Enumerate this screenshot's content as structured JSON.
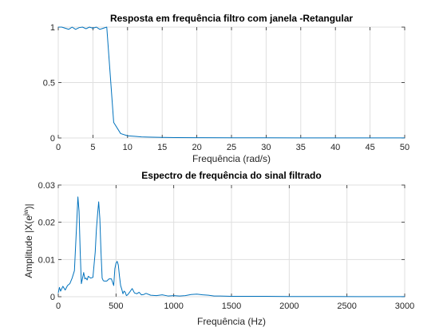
{
  "chart_data": [
    {
      "type": "line",
      "title": "Resposta em frequência filtro com janela -Retangular",
      "xlabel": "Frequência (rad/s)",
      "ylabel": "",
      "xlim": [
        0,
        50
      ],
      "ylim": [
        0,
        1
      ],
      "xticks": [
        "0",
        "5",
        "10",
        "15",
        "20",
        "25",
        "30",
        "35",
        "40",
        "45",
        "50"
      ],
      "yticks": [
        "0",
        "0.5",
        "1"
      ],
      "grid": true,
      "color": "#0072bd",
      "series": [
        {
          "x": [
            0,
            0.5,
            1,
            1.5,
            2,
            2.5,
            3,
            3.5,
            4,
            4.5,
            5,
            5.5,
            6,
            6.5,
            7,
            8,
            9,
            10,
            11,
            12,
            13,
            15,
            17,
            20,
            25,
            30,
            35,
            40,
            45,
            50
          ],
          "y": [
            1.0,
            1.0,
            0.99,
            0.98,
            1.0,
            0.98,
            0.995,
            1.0,
            0.985,
            1.0,
            0.99,
            1.0,
            0.98,
            0.99,
            1.0,
            0.14,
            0.04,
            0.02,
            0.015,
            0.01,
            0.008,
            0.005,
            0.004,
            0.003,
            0.002,
            0.0015,
            0.001,
            0.001,
            0.0008,
            0.0005
          ]
        }
      ]
    },
    {
      "type": "line",
      "title": "Espectro de frequência do sinal filtrado",
      "xlabel": "Frequência (Hz)",
      "ylabel": "Amplitude |X(e^jw)|",
      "ylabel_base": "Amplitude |X(e",
      "ylabel_sup": "jw",
      "ylabel_tail": ")|",
      "xlim": [
        0,
        3000
      ],
      "ylim": [
        0,
        0.03
      ],
      "xticks": [
        "0",
        "500",
        "1000",
        "1500",
        "2000",
        "2500",
        "3000"
      ],
      "yticks": [
        "0",
        "0.01",
        "0.02",
        "0.03"
      ],
      "grid": true,
      "color": "#0072bd",
      "series": [
        {
          "x": [
            0,
            10,
            20,
            40,
            60,
            80,
            100,
            120,
            140,
            160,
            170,
            180,
            190,
            200,
            210,
            220,
            230,
            240,
            250,
            260,
            280,
            300,
            320,
            330,
            340,
            350,
            360,
            370,
            380,
            390,
            400,
            420,
            440,
            460,
            480,
            490,
            500,
            510,
            520,
            530,
            540,
            550,
            560,
            570,
            580,
            590,
            600,
            620,
            640,
            660,
            680,
            700,
            720,
            740,
            760,
            800,
            850,
            900,
            950,
            1000,
            1050,
            1100,
            1150,
            1200,
            1250,
            1300,
            1350,
            1400,
            1500,
            1600,
            1800,
            2000,
            2200,
            2400,
            2600,
            2800,
            3000
          ],
          "y": [
            0.001,
            0.0025,
            0.0015,
            0.0028,
            0.0018,
            0.003,
            0.0035,
            0.005,
            0.007,
            0.02,
            0.0268,
            0.023,
            0.012,
            0.0035,
            0.005,
            0.0065,
            0.0048,
            0.005,
            0.0045,
            0.0055,
            0.005,
            0.0052,
            0.012,
            0.018,
            0.022,
            0.0255,
            0.021,
            0.012,
            0.005,
            0.0043,
            0.0042,
            0.0042,
            0.0048,
            0.0048,
            0.003,
            0.0075,
            0.009,
            0.0095,
            0.0085,
            0.0055,
            0.003,
            0.002,
            0.0008,
            0.0015,
            0.0012,
            0.0003,
            0.0005,
            0.0013,
            0.0022,
            0.001,
            0.0008,
            0.0012,
            0.0005,
            0.0006,
            0.0009,
            0.0004,
            0.0003,
            0.0005,
            0.0002,
            0.0003,
            0.0002,
            0.0003,
            0.0006,
            0.0007,
            0.0005,
            0.0004,
            0.0002,
            0.0002,
            0.0001,
            0.0001,
            0.0001,
            5e-05,
            5e-05,
            5e-05,
            3e-05,
            3e-05,
            2e-05
          ]
        }
      ]
    }
  ]
}
